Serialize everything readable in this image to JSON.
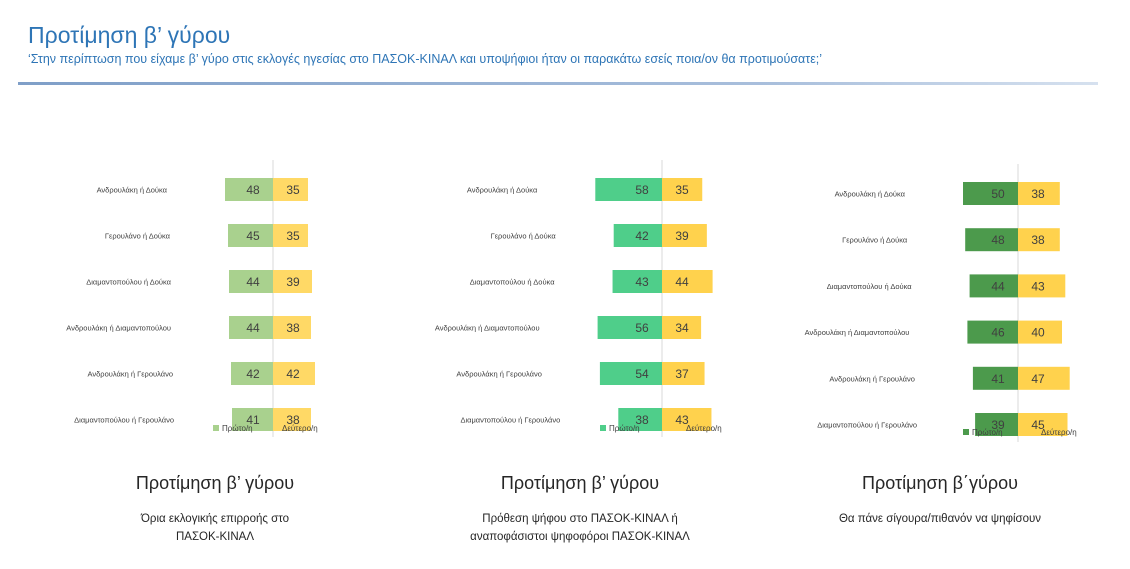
{
  "header": {
    "title": "Προτίμηση β’ γύρου",
    "subtitle": "‘Στην περίπτωση που είχαμε β’ γύρο στις εκλογές ηγεσίας στο ΠΑΣΟΚ-ΚΙΝΑΛ και υποψήφιοι ήταν οι παρακάτω εσείς ποια/ον θα προτιμούσατε;’"
  },
  "panels": [
    {
      "title": "Προτίμηση β’ γύρου",
      "caption_lines": [
        "Όρια εκλογικής επιρροής στο",
        "ΠΑΣΟΚ-ΚΙΝΑΛ"
      ]
    },
    {
      "title": "Προτίμηση β’ γύρου",
      "caption_lines": [
        "Πρόθεση ψήφου στο ΠΑΣΟΚ-ΚΙΝΑΛ ή",
        "αναποφάσιστοι ψηφοφόροι ΠΑΣΟΚ-ΚΙΝΑΛ"
      ]
    },
    {
      "title": "Προτίμηση β΄γύρου",
      "caption_lines": [
        "Θα πάνε σίγουρα/πιθανόν να ψηφίσουν"
      ]
    }
  ],
  "chart_data": [
    {
      "type": "bar",
      "orientation": "diverging-horizontal",
      "categories": [
        "Ανδρουλάκη ή Δούκα",
        "Γερουλάνο ή Δούκα",
        "Διαμαντοπούλου ή Δούκα",
        "Ανδρουλάκη ή Διαμαντοπούλου",
        "Ανδρουλάκη ή Γερουλάνο",
        "Διαμαντοπούλου ή Γερουλάνο"
      ],
      "series": [
        {
          "name": "Πρώτο/η",
          "values": [
            48,
            45,
            44,
            44,
            42,
            41
          ],
          "color": "#a9d18e"
        },
        {
          "name": "Δεύτερο/η",
          "values": [
            35,
            35,
            39,
            38,
            42,
            38
          ],
          "color": "#ffd966"
        }
      ],
      "legend": "bottom",
      "grid": false
    },
    {
      "type": "bar",
      "orientation": "diverging-horizontal",
      "categories": [
        "Ανδρουλάκη ή Δούκα",
        "Γερουλάνο ή Δούκα",
        "Διαμαντοπούλου ή Δούκα",
        "Ανδρουλάκη ή Διαμαντοπούλου",
        "Ανδρουλάκη ή Γερουλάνο",
        "Διαμαντοπούλου ή Γερουλάνο"
      ],
      "series": [
        {
          "name": "Πρώτο/η",
          "values": [
            58,
            42,
            43,
            56,
            54,
            38
          ],
          "color": "#4fce8a"
        },
        {
          "name": "Δεύτερο/η",
          "values": [
            35,
            39,
            44,
            34,
            37,
            43
          ],
          "color": "#ffd24d"
        }
      ],
      "legend": "bottom",
      "grid": false
    },
    {
      "type": "bar",
      "orientation": "diverging-horizontal",
      "categories": [
        "Ανδρουλάκη ή Δούκα",
        "Γερουλάνο ή Δούκα",
        "Διαμαντοπούλου ή Δούκα",
        "Ανδρουλάκη ή Διαμαντοπούλου",
        "Ανδρουλάκη ή Γερουλάνο",
        "Διαμαντοπούλου ή Γερουλάνο"
      ],
      "series": [
        {
          "name": "Πρώτο/η",
          "values": [
            50,
            48,
            44,
            46,
            41,
            39
          ],
          "color": "#4c9a4c"
        },
        {
          "name": "Δεύτερο/η",
          "values": [
            38,
            38,
            43,
            40,
            47,
            45
          ],
          "color": "#ffd24d"
        }
      ],
      "legend": "bottom",
      "grid": false
    }
  ]
}
